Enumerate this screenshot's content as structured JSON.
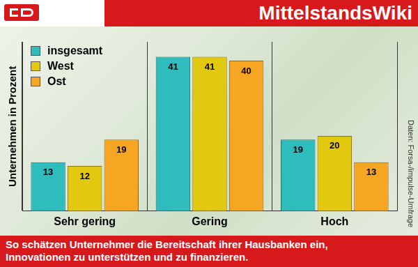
{
  "header": {
    "site_name": "MittelstandsWiki"
  },
  "chart_data": {
    "type": "bar",
    "y_label": "Unternehmen in Prozent",
    "categories": [
      "Sehr gering",
      "Gering",
      "Hoch"
    ],
    "series": [
      {
        "name": "insgesamt",
        "color": "#2fbcbc",
        "values": [
          13,
          41,
          19
        ]
      },
      {
        "name": "West",
        "color": "#e2c80e",
        "values": [
          12,
          41,
          20
        ]
      },
      {
        "name": "Ost",
        "color": "#f6a623",
        "values": [
          19,
          40,
          13
        ]
      }
    ],
    "ylim": [
      0,
      45
    ],
    "grid": false,
    "legend": "top-left",
    "data_labels": true,
    "tick_labels": "x",
    "source": "Daten: Forsa-/impulse-Umfrage"
  },
  "caption": [
    "So schätzen Unternehmer die Bereitschaft ihrer Hausbanken ein,",
    "Innovationen zu unterstützen und zu finanzieren."
  ]
}
